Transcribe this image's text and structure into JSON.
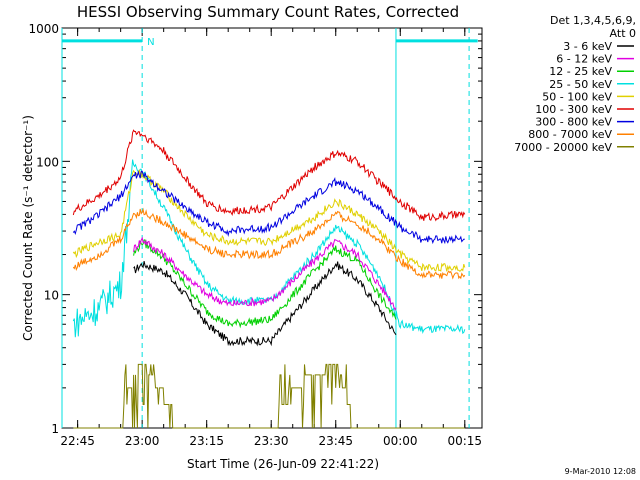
{
  "chart_data": {
    "type": "line",
    "title": "HESSI Observing Summary Count Rates, Corrected",
    "ylabel": "Corrected Count Rate (s⁻¹ detector⁻¹)",
    "xlabel": "Start Time (26-Jun-09 22:41:22)",
    "y_scale": "log",
    "ylim": [
      1,
      1000
    ],
    "y_ticks": [
      {
        "value": 1,
        "label": "1"
      },
      {
        "value": 10,
        "label": "10"
      },
      {
        "value": 100,
        "label": "100"
      },
      {
        "value": 1000,
        "label": "1000"
      }
    ],
    "xlim": [
      "22:41:22",
      "00:19:00"
    ],
    "x_ticks": [
      {
        "value": "22:45",
        "label": "22:45"
      },
      {
        "value": "23:00",
        "label": "23:00"
      },
      {
        "value": "23:15",
        "label": "23:15"
      },
      {
        "value": "23:30",
        "label": "23:30"
      },
      {
        "value": "23:45",
        "label": "23:45"
      },
      {
        "value": "00:00",
        "label": "00:00"
      },
      {
        "value": "00:15",
        "label": "00:15"
      }
    ],
    "legend_header": [
      "Det 1,3,4,5,6,9,",
      "Att 0"
    ],
    "legend_position": "right",
    "series": [
      {
        "name": "3 - 6 keV",
        "color": "#000000",
        "x": [
          "22:58",
          "23:00",
          "23:05",
          "23:10",
          "23:15",
          "23:20",
          "23:30",
          "23:40",
          "23:45",
          "23:50",
          "23:55",
          "23:59"
        ],
        "y": [
          15,
          17,
          15,
          10,
          6,
          4.5,
          4.5,
          11,
          17,
          13,
          8,
          5
        ]
      },
      {
        "name": "6 - 12 keV",
        "color": "#e000e0",
        "x": [
          "22:58",
          "23:00",
          "23:05",
          "23:10",
          "23:15",
          "23:20",
          "23:30",
          "23:40",
          "23:45",
          "23:50",
          "23:55",
          "23:59"
        ],
        "y": [
          22,
          26,
          20,
          14,
          10,
          8.5,
          9,
          18,
          25,
          20,
          12,
          8
        ]
      },
      {
        "name": "12 - 25 keV",
        "color": "#00d000",
        "x": [
          "22:58",
          "23:00",
          "23:05",
          "23:10",
          "23:15",
          "23:20",
          "23:30",
          "23:40",
          "23:45",
          "23:50",
          "23:55",
          "23:59"
        ],
        "y": [
          20,
          25,
          19,
          12,
          7.5,
          6,
          6.5,
          15,
          22,
          18,
          10,
          6.5
        ]
      },
      {
        "name": "25 - 50 keV",
        "color": "#00e0e0",
        "x": [
          "22:44",
          "22:50",
          "22:55",
          "22:58",
          "23:00",
          "23:05",
          "23:10",
          "23:15",
          "23:20",
          "23:30",
          "23:40",
          "23:45",
          "23:50",
          "23:55",
          "00:00",
          "00:05",
          "00:15"
        ],
        "y": [
          6,
          8,
          12,
          95,
          85,
          45,
          22,
          12,
          9,
          9,
          20,
          32,
          24,
          14,
          6,
          5.5,
          5.5
        ]
      },
      {
        "name": "50 - 100 keV",
        "color": "#e0d000",
        "x": [
          "22:44",
          "22:50",
          "22:55",
          "22:58",
          "23:00",
          "23:05",
          "23:10",
          "23:15",
          "23:20",
          "23:30",
          "23:40",
          "23:45",
          "23:50",
          "23:55",
          "00:00",
          "00:05",
          "00:15"
        ],
        "y": [
          20,
          25,
          28,
          85,
          80,
          60,
          40,
          28,
          25,
          25,
          38,
          50,
          40,
          30,
          20,
          16,
          16
        ]
      },
      {
        "name": "100 - 300 keV",
        "color": "#e00000",
        "x": [
          "22:44",
          "22:50",
          "22:55",
          "22:58",
          "23:00",
          "23:05",
          "23:10",
          "23:15",
          "23:20",
          "23:30",
          "23:40",
          "23:45",
          "23:50",
          "23:55",
          "00:00",
          "00:05",
          "00:15"
        ],
        "y": [
          42,
          55,
          75,
          170,
          160,
          120,
          75,
          48,
          42,
          45,
          90,
          115,
          100,
          70,
          50,
          38,
          40
        ]
      },
      {
        "name": "300 - 800 keV",
        "color": "#0000e0",
        "x": [
          "22:44",
          "22:50",
          "22:55",
          "22:58",
          "23:00",
          "23:05",
          "23:10",
          "23:15",
          "23:20",
          "23:30",
          "23:40",
          "23:45",
          "23:50",
          "23:55",
          "00:00",
          "00:05",
          "00:15"
        ],
        "y": [
          30,
          40,
          55,
          78,
          80,
          60,
          45,
          35,
          30,
          32,
          55,
          70,
          60,
          45,
          32,
          26,
          26
        ]
      },
      {
        "name": "800 - 7000 keV",
        "color": "#ff8000",
        "x": [
          "22:44",
          "22:50",
          "22:55",
          "22:58",
          "23:00",
          "23:05",
          "23:10",
          "23:15",
          "23:20",
          "23:30",
          "23:40",
          "23:45",
          "23:50",
          "23:55",
          "00:00",
          "00:05",
          "00:15"
        ],
        "y": [
          16,
          20,
          26,
          40,
          42,
          35,
          28,
          22,
          20,
          20,
          30,
          40,
          34,
          26,
          18,
          14,
          14
        ]
      },
      {
        "name": "7000 - 20000 keV",
        "color": "#808000",
        "x": [
          "22:44",
          "22:55",
          "22:56",
          "22:58",
          "23:00",
          "23:02",
          "23:04",
          "23:06",
          "23:08",
          "23:09",
          "23:30",
          "23:35",
          "23:40",
          "23:45",
          "23:47",
          "23:49",
          "00:15"
        ],
        "y": [
          1,
          1,
          1.5,
          2.5,
          3,
          2.5,
          2,
          1.5,
          1,
          1,
          1,
          2,
          2.5,
          3,
          2,
          1,
          1
        ]
      }
    ],
    "bars": [
      {
        "color": "#00e0e0",
        "y": 800,
        "x_start": "22:41:22",
        "x_end": "23:00",
        "label": "N"
      },
      {
        "color": "#00e0e0",
        "y": 800,
        "x_start": "23:59",
        "x_end": "00:18",
        "label": ""
      }
    ],
    "vlines": [
      {
        "x": "22:41:22",
        "color": "#00e0e0",
        "style": "solid"
      },
      {
        "x": "23:00",
        "color": "#00e0e0",
        "style": "dashed"
      },
      {
        "x": "23:59",
        "color": "#00e0e0",
        "style": "solid"
      },
      {
        "x": "00:16",
        "color": "#00e0e0",
        "style": "dashed"
      }
    ],
    "footer": "9-Mar-2010 12:08"
  }
}
